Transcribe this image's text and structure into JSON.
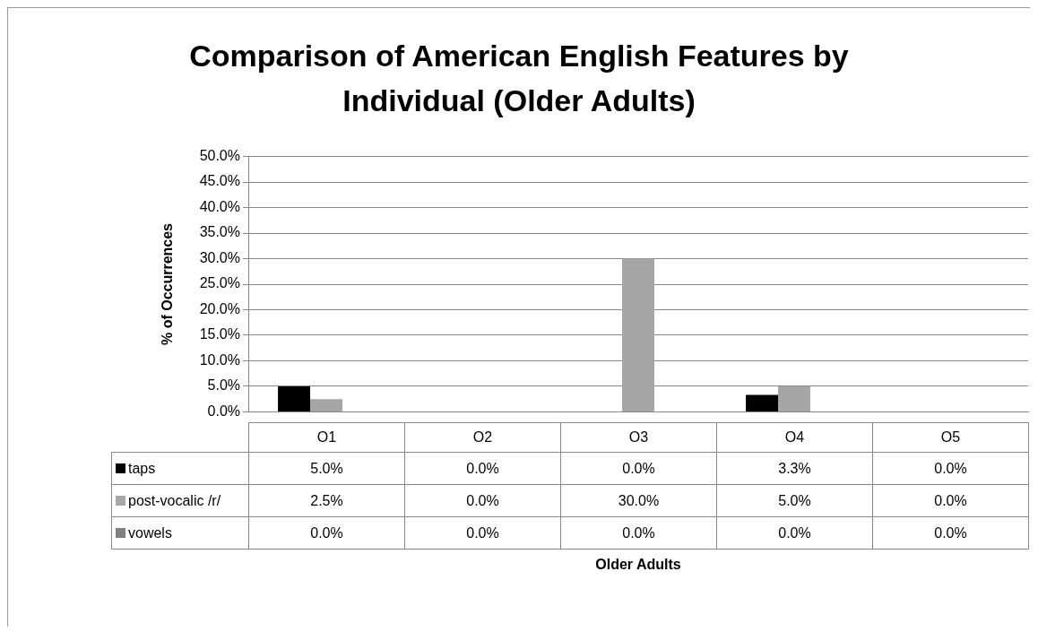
{
  "chart_data": {
    "type": "bar",
    "title": "Comparison of American English Features by Individual (Older Adults)",
    "ylabel": "% of Occurrences",
    "annotations": [
      "Older Adults"
    ],
    "categories": [
      "O1",
      "O2",
      "O3",
      "O4",
      "O5"
    ],
    "series": [
      {
        "name": "taps",
        "color": "#000000",
        "values": [
          5.0,
          0.0,
          0.0,
          3.3,
          0.0
        ],
        "value_labels": [
          "5.0%",
          "0.0%",
          "0.0%",
          "3.3%",
          "0.0%"
        ]
      },
      {
        "name": "post-vocalic /r/",
        "color": "#a6a6a6",
        "values": [
          2.5,
          0.0,
          30.0,
          5.0,
          0.0
        ],
        "value_labels": [
          "2.5%",
          "0.0%",
          "30.0%",
          "5.0%",
          "0.0%"
        ]
      },
      {
        "name": "vowels",
        "color": "#808080",
        "values": [
          0.0,
          0.0,
          0.0,
          0.0,
          0.0
        ],
        "value_labels": [
          "0.0%",
          "0.0%",
          "0.0%",
          "0.0%",
          "0.0%"
        ]
      }
    ],
    "ylim": [
      0,
      50
    ],
    "yticks": [
      {
        "value": 0,
        "label": "0.0%"
      },
      {
        "value": 5,
        "label": "5.0%"
      },
      {
        "value": 10,
        "label": "10.0%"
      },
      {
        "value": 15,
        "label": "15.0%"
      },
      {
        "value": 20,
        "label": "20.0%"
      },
      {
        "value": 25,
        "label": "25.0%"
      },
      {
        "value": 30,
        "label": "30.0%"
      },
      {
        "value": 35,
        "label": "35.0%"
      },
      {
        "value": 40,
        "label": "40.0%"
      },
      {
        "value": 45,
        "label": "45.0%"
      },
      {
        "value": 50,
        "label": "50.0%"
      }
    ],
    "grid": "y",
    "legend": "bottom"
  }
}
